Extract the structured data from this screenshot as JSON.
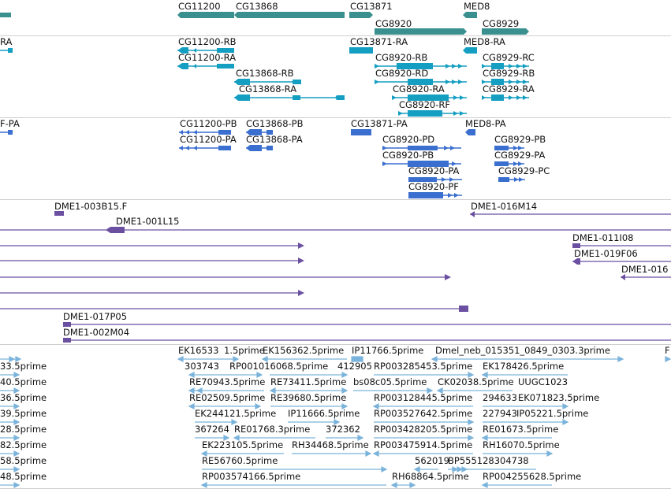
{
  "colors": {
    "gene": "#3a8f8f",
    "transcript_a": "#139ec2",
    "transcript_b": "#3a6fcf",
    "clone": "#6b4fa0",
    "est": "#7ab3db"
  },
  "tracks": {
    "genes": [
      "CG11200",
      "CG13868",
      "CG13871",
      "MED8",
      "CG8920",
      "CG8929"
    ],
    "transcripts_a": [
      "RA",
      "CG11200-RB",
      "CG11200-RA",
      "CG13868-RB",
      "CG13868-RA",
      "CG13871-RA",
      "CG8920-RB",
      "CG8920-RD",
      "CG8920-RA",
      "CG8920-RF",
      "MED8-RA",
      "CG8929-RC",
      "CG8929-RB",
      "CG8929-RA"
    ],
    "transcripts_b": [
      "F-PA",
      "CG11200-PB",
      "CG13868-PB",
      "CG11200-PA",
      "CG13868-PA",
      "CG13871-PA",
      "MED8-PA",
      "CG8920-PD",
      "CG8920-PB",
      "CG8920-PA",
      "CG8920-PF",
      "CG8929-PB",
      "CG8929-PA",
      "CG8929-PC"
    ],
    "clones": [
      "DME1-003B15.F",
      "DME1-001L15",
      "DME1-016M14",
      "DME1-011I08",
      "DME1-019F06",
      "DME1-016",
      "DME1-017P05",
      "DME1-002M04"
    ],
    "ests": [
      "EK16533",
      "1.5prime",
      "EK156362.5prime",
      "IP11766.5prime",
      "Dmel_neb_015351_0849_0303.3prime",
      "F",
      "33.5prime",
      "303743",
      "RP001016068.5prime",
      "412905",
      "RP003285453.5prime",
      "EK178426.5prime",
      "40.5prime",
      "RE70943.5prime",
      "RE73411.5prime",
      "bs08c05.5prime",
      "CK02038.5prime",
      "UUGC1023",
      "36.5prime",
      "RE02509.5prime",
      "RE39680.5prime",
      "RP003128445.5prime",
      "294633",
      "EK071823.5prime",
      "39.5prime",
      "EK244121.5prime",
      "IP11666.5prime",
      "RP003527642.5prime",
      "227943",
      "IP05221.5prime",
      "28.5prime",
      "367264",
      "RE01768.3prime",
      "372362",
      "RP003428205.5prime",
      "RE01673.5prime",
      "82.5prime",
      "EK223105.5prime",
      "RH34468.5prime",
      "RP003475914.5prime",
      "RH16070.5prime",
      "58.5prime",
      "RE56760.5prime",
      "562019",
      "BP555128304738",
      "48.5prime",
      "RP003574166.5prime",
      "RH68864.5prime",
      "RP004255628.5prime"
    ]
  }
}
